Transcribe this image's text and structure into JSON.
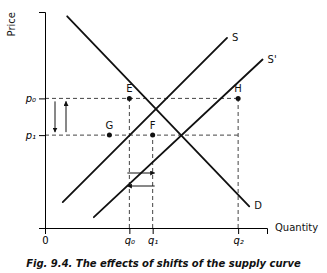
{
  "chart_data": {
    "type": "line",
    "title": "Fig. 9.4. The effects of shifts of the supply curve",
    "xlabel": "Quantity",
    "ylabel": "Price",
    "xlim": [
      0,
      10
    ],
    "ylim": [
      0,
      10
    ],
    "xticks": [
      0,
      {
        "value": 3.8,
        "label": "q₀"
      },
      {
        "value": 4.85,
        "label": "q₁"
      },
      {
        "value": 8.7,
        "label": "q₂"
      }
    ],
    "yticks": [
      {
        "value": 6.0,
        "label": "p₀"
      },
      {
        "value": 4.3,
        "label": "p₁"
      }
    ],
    "grid": false,
    "series": [
      {
        "name": "D",
        "color": "#111111",
        "x": [
          1.0,
          9.2
        ],
        "values": [
          9.8,
          1.0
        ]
      },
      {
        "name": "S",
        "color": "#111111",
        "x": [
          0.8,
          8.2
        ],
        "values": [
          1.2,
          8.8
        ]
      },
      {
        "name": "S'",
        "color": "#111111",
        "x": [
          2.2,
          9.8
        ],
        "values": [
          0.5,
          7.8
        ]
      }
    ],
    "guides": [
      {
        "color": "#444444",
        "line_style": "dashed",
        "x": [
          0,
          8.7
        ],
        "y": [
          6.0,
          6.0
        ]
      },
      {
        "color": "#444444",
        "line_style": "dashed",
        "x": [
          0,
          8.7
        ],
        "y": [
          4.3,
          4.3
        ]
      },
      {
        "color": "#444444",
        "line_style": "dashed",
        "x": [
          3.8,
          3.8
        ],
        "y": [
          0,
          6.0
        ]
      },
      {
        "color": "#444444",
        "line_style": "dashed",
        "x": [
          4.85,
          4.85
        ],
        "y": [
          0,
          4.3
        ]
      },
      {
        "color": "#444444",
        "line_style": "dashed",
        "x": [
          8.7,
          8.7
        ],
        "y": [
          0,
          6.0
        ]
      }
    ],
    "points": [
      {
        "label": "E",
        "color": "#111111",
        "x": 3.8,
        "y": 6.0
      },
      {
        "label": "F",
        "color": "#111111",
        "x": 4.85,
        "y": 4.3
      },
      {
        "label": "H",
        "color": "#111111",
        "x": 8.7,
        "y": 6.0
      },
      {
        "label": "G",
        "color": "#111111",
        "x": 2.9,
        "y": 4.3
      }
    ],
    "arrows": [
      {
        "axis": "y",
        "color": "#111111",
        "from": 6.0,
        "to": 4.3
      },
      {
        "axis": "y",
        "color": "#111111",
        "from": 4.3,
        "to": 6.0
      },
      {
        "axis": "x",
        "color": "#111111",
        "from": 3.8,
        "to": 4.85
      },
      {
        "axis": "x",
        "color": "#111111",
        "from": 4.85,
        "to": 3.8
      }
    ]
  }
}
